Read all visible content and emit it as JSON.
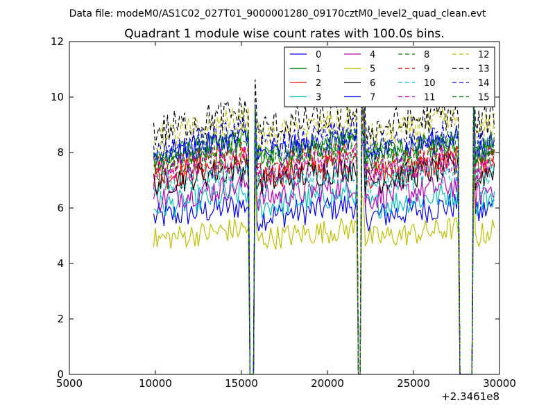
{
  "suptitle": "Data file: modeM0/AS1C02_027T01_9000001280_09170cztM0_level2_quad_clean.evt",
  "chart_data": {
    "type": "line",
    "title": "Quadrant 1 module wise count rates with 100.0s bins.",
    "xlabel": "",
    "ylabel": "",
    "xlim": [
      5000,
      30000
    ],
    "ylim": [
      0,
      12
    ],
    "x_offset_label": "+2.3461e8",
    "xticks": [
      5000,
      10000,
      15000,
      20000,
      25000,
      30000
    ],
    "xtick_labels": [
      "5000",
      "10000",
      "15000",
      "20000",
      "25000",
      "30000"
    ],
    "yticks": [
      0,
      2,
      4,
      6,
      8,
      10,
      12
    ],
    "ytick_labels": [
      "0",
      "2",
      "4",
      "6",
      "8",
      "10",
      "12"
    ],
    "grid": false,
    "legend_position": "top-right",
    "x_start": 9900,
    "x_step": 100,
    "n_points": 199,
    "gaps": [
      [
        15460,
        15700
      ],
      [
        21740,
        21980
      ],
      [
        27700,
        28400
      ]
    ],
    "series": [
      {
        "name": "0",
        "mean": 5.8,
        "noise": 0.32,
        "color": "#0000ff",
        "dashed": false
      },
      {
        "name": "1",
        "mean": 8.0,
        "noise": 0.3,
        "color": "#008000",
        "dashed": false
      },
      {
        "name": "2",
        "mean": 7.3,
        "noise": 0.32,
        "color": "#ff0000",
        "dashed": false
      },
      {
        "name": "3",
        "mean": 6.2,
        "noise": 0.3,
        "color": "#00bfbf",
        "dashed": false
      },
      {
        "name": "4",
        "mean": 6.5,
        "noise": 0.3,
        "color": "#bf00bf",
        "dashed": false
      },
      {
        "name": "5",
        "mean": 5.0,
        "noise": 0.28,
        "color": "#bfbf00",
        "dashed": false
      },
      {
        "name": "6",
        "mean": 7.1,
        "noise": 0.32,
        "color": "#000000",
        "dashed": false
      },
      {
        "name": "7",
        "mean": 8.1,
        "noise": 0.3,
        "color": "#0000ff",
        "dashed": false
      },
      {
        "name": "8",
        "mean": 7.7,
        "noise": 0.32,
        "color": "#008000",
        "dashed": true
      },
      {
        "name": "9",
        "mean": 7.6,
        "noise": 0.32,
        "color": "#ff0000",
        "dashed": true
      },
      {
        "name": "10",
        "mean": 7.0,
        "noise": 0.32,
        "color": "#00bfbf",
        "dashed": true
      },
      {
        "name": "11",
        "mean": 7.4,
        "noise": 0.32,
        "color": "#bf00bf",
        "dashed": true
      },
      {
        "name": "12",
        "mean": 8.7,
        "noise": 0.35,
        "color": "#bfbf00",
        "dashed": true
      },
      {
        "name": "13",
        "mean": 9.0,
        "noise": 0.4,
        "color": "#000000",
        "dashed": true
      },
      {
        "name": "14",
        "mean": 8.3,
        "noise": 0.32,
        "color": "#0000ff",
        "dashed": true
      },
      {
        "name": "15",
        "mean": 8.0,
        "noise": 0.32,
        "color": "#008000",
        "dashed": true
      }
    ]
  }
}
